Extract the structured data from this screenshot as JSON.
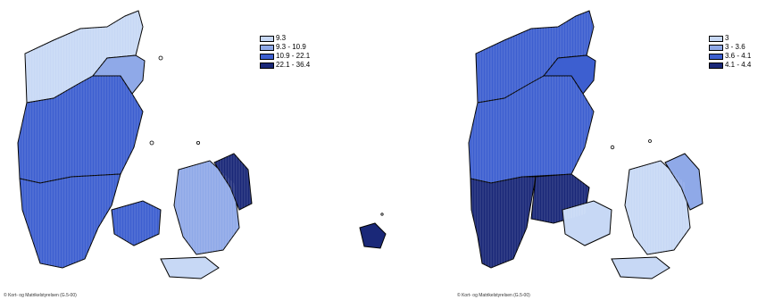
{
  "maps": [
    {
      "legend": [
        {
          "label": "9.3",
          "color": "#c7d8f5"
        },
        {
          "label": "9.3 - 10.9",
          "color": "#8fa9e8"
        },
        {
          "label": "10.9 - 22.1",
          "color": "#3d5fd0"
        },
        {
          "label": "22.1 - 36.4",
          "color": "#1a2878"
        }
      ],
      "credit": "© Kort- og Matrikelstyrelsen (G.5-00)"
    },
    {
      "legend": [
        {
          "label": "3",
          "color": "#c7d8f5"
        },
        {
          "label": "3 - 3.6",
          "color": "#8fa9e8"
        },
        {
          "label": "3.6 - 4.1",
          "color": "#3d5fd0"
        },
        {
          "label": "4.1 - 4.4",
          "color": "#1a2878"
        }
      ],
      "credit": "© Kort- og Matrikelstyrelsen (G.5-00)"
    }
  ]
}
